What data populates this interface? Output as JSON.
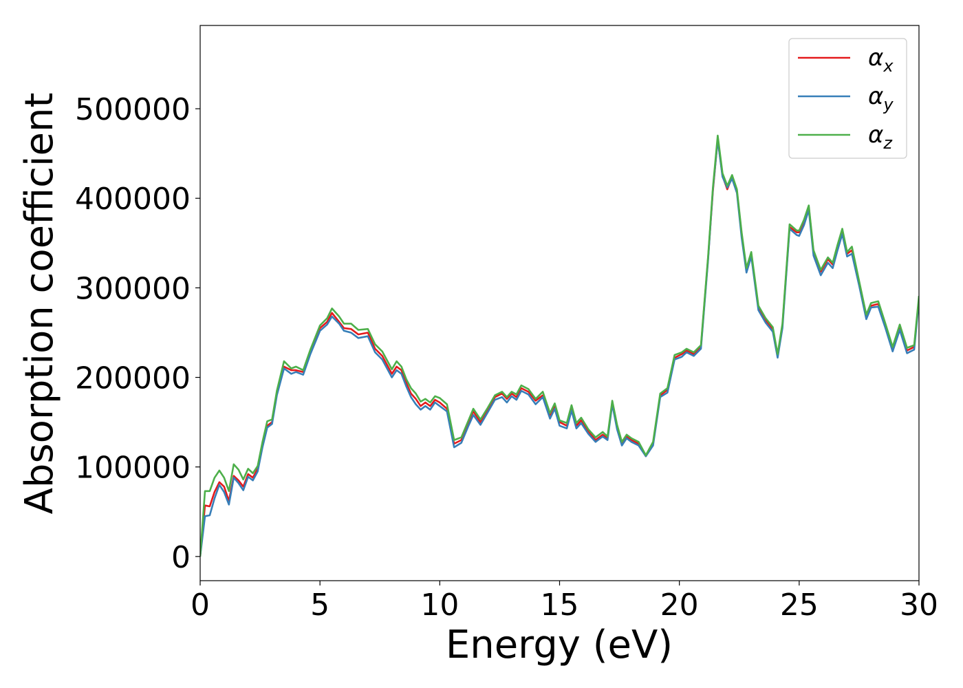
{
  "chart_data": {
    "type": "line",
    "xlabel": "Energy (eV)",
    "ylabel": "Absorption coefficient",
    "xlim": [
      0,
      30
    ],
    "ylim": [
      -27000,
      593000
    ],
    "xticks": [
      0,
      5,
      10,
      15,
      20,
      25,
      30
    ],
    "yticks": [
      0,
      100000,
      200000,
      300000,
      400000,
      500000
    ],
    "grid": false,
    "legend_position": "top-right",
    "x": [
      0,
      0.2,
      0.4,
      0.6,
      0.8,
      1.0,
      1.2,
      1.4,
      1.6,
      1.8,
      2.0,
      2.2,
      2.4,
      2.6,
      2.8,
      3.0,
      3.2,
      3.5,
      3.8,
      4.0,
      4.3,
      4.6,
      5.0,
      5.3,
      5.5,
      5.8,
      6.0,
      6.3,
      6.6,
      7.0,
      7.3,
      7.6,
      8.0,
      8.2,
      8.4,
      8.6,
      8.8,
      9.0,
      9.2,
      9.4,
      9.6,
      9.8,
      10.0,
      10.3,
      10.6,
      10.9,
      11.2,
      11.4,
      11.7,
      12.0,
      12.3,
      12.6,
      12.8,
      13.0,
      13.2,
      13.4,
      13.7,
      14.0,
      14.3,
      14.6,
      14.8,
      15.0,
      15.3,
      15.5,
      15.7,
      15.9,
      16.2,
      16.5,
      16.8,
      17.0,
      17.2,
      17.4,
      17.6,
      17.8,
      18.0,
      18.3,
      18.6,
      18.9,
      19.2,
      19.5,
      19.8,
      20.1,
      20.3,
      20.6,
      20.9,
      21.2,
      21.4,
      21.6,
      21.8,
      22.0,
      22.2,
      22.4,
      22.6,
      22.8,
      23.0,
      23.3,
      23.6,
      23.9,
      24.1,
      24.3,
      24.6,
      24.9,
      25.0,
      25.2,
      25.4,
      25.6,
      25.9,
      26.2,
      26.4,
      26.6,
      26.8,
      27.0,
      27.2,
      27.5,
      27.8,
      28.0,
      28.3,
      28.6,
      28.9,
      29.2,
      29.5,
      29.8,
      30.0
    ],
    "series": [
      {
        "name": "α",
        "subscript": "x",
        "color": "#e41a1c",
        "values": [
          0,
          57000,
          56000,
          72000,
          83000,
          78000,
          62000,
          90000,
          85000,
          78000,
          92000,
          88000,
          98000,
          125000,
          146000,
          150000,
          182000,
          212000,
          208000,
          208000,
          206000,
          228000,
          255000,
          262000,
          272000,
          262000,
          255000,
          254000,
          248000,
          250000,
          232000,
          224000,
          204000,
          212000,
          208000,
          194000,
          182000,
          176000,
          168000,
          172000,
          168000,
          175000,
          172000,
          165000,
          126000,
          130000,
          150000,
          162000,
          150000,
          164000,
          178000,
          182000,
          176000,
          182000,
          178000,
          188000,
          184000,
          174000,
          180000,
          158000,
          168000,
          150000,
          146000,
          166000,
          146000,
          152000,
          140000,
          130000,
          136000,
          132000,
          172000,
          145000,
          126000,
          134000,
          130000,
          126000,
          112000,
          126000,
          180000,
          186000,
          222000,
          226000,
          230000,
          226000,
          234000,
          334000,
          408000,
          466000,
          425000,
          410000,
          424000,
          408000,
          360000,
          320000,
          338000,
          278000,
          264000,
          254000,
          225000,
          258000,
          368000,
          362000,
          362000,
          374000,
          390000,
          340000,
          318000,
          332000,
          326000,
          346000,
          364000,
          338000,
          342000,
          306000,
          268000,
          280000,
          282000,
          258000,
          232000,
          256000,
          230000,
          234000,
          288000
        ]
      },
      {
        "name": "α",
        "subscript": "y",
        "color": "#377eb8",
        "values": [
          0,
          45000,
          46000,
          65000,
          80000,
          72000,
          58000,
          88000,
          82000,
          74000,
          89000,
          85000,
          95000,
          122000,
          144000,
          148000,
          180000,
          210000,
          204000,
          206000,
          203000,
          226000,
          252000,
          259000,
          268000,
          260000,
          252000,
          250000,
          244000,
          246000,
          228000,
          220000,
          200000,
          208000,
          204000,
          190000,
          178000,
          170000,
          164000,
          168000,
          164000,
          172000,
          168000,
          162000,
          122000,
          127000,
          146000,
          158000,
          147000,
          161000,
          175000,
          178000,
          172000,
          179000,
          175000,
          185000,
          181000,
          170000,
          178000,
          154000,
          165000,
          146000,
          143000,
          163000,
          143000,
          149000,
          137000,
          128000,
          134000,
          130000,
          170000,
          142000,
          124000,
          132000,
          128000,
          124000,
          112000,
          124000,
          178000,
          183000,
          220000,
          223000,
          228000,
          224000,
          232000,
          332000,
          410000,
          465000,
          424000,
          412000,
          422000,
          406000,
          356000,
          317000,
          335000,
          275000,
          261000,
          251000,
          222000,
          255000,
          366000,
          359000,
          358000,
          370000,
          387000,
          336000,
          314000,
          328000,
          322000,
          342000,
          360000,
          335000,
          338000,
          303000,
          265000,
          278000,
          279000,
          255000,
          229000,
          253000,
          227000,
          231000,
          286000
        ]
      },
      {
        "name": "α",
        "subscript": "z",
        "color": "#4daf4a",
        "values": [
          0,
          73000,
          73000,
          88000,
          96000,
          88000,
          73000,
          103000,
          97000,
          86000,
          98000,
          93000,
          101000,
          128000,
          151000,
          153000,
          185000,
          218000,
          210000,
          212000,
          208000,
          231000,
          258000,
          266000,
          277000,
          268000,
          260000,
          260000,
          253000,
          254000,
          237000,
          229000,
          209000,
          218000,
          212000,
          198000,
          188000,
          182000,
          173000,
          176000,
          172000,
          179000,
          177000,
          170000,
          130000,
          133000,
          152000,
          165000,
          153000,
          166000,
          180000,
          184000,
          178000,
          184000,
          181000,
          191000,
          187000,
          176000,
          184000,
          160000,
          171000,
          152000,
          149000,
          169000,
          149000,
          155000,
          142000,
          133000,
          139000,
          134000,
          174000,
          147000,
          128000,
          136000,
          132000,
          128000,
          113000,
          128000,
          182000,
          188000,
          225000,
          228000,
          232000,
          228000,
          236000,
          336000,
          412000,
          470000,
          428000,
          414000,
          426000,
          410000,
          362000,
          322000,
          340000,
          280000,
          266000,
          256000,
          226000,
          260000,
          371000,
          364000,
          364000,
          376000,
          392000,
          342000,
          320000,
          334000,
          328000,
          348000,
          366000,
          340000,
          346000,
          308000,
          270000,
          283000,
          285000,
          260000,
          234000,
          259000,
          233000,
          236000,
          291000
        ]
      }
    ]
  }
}
